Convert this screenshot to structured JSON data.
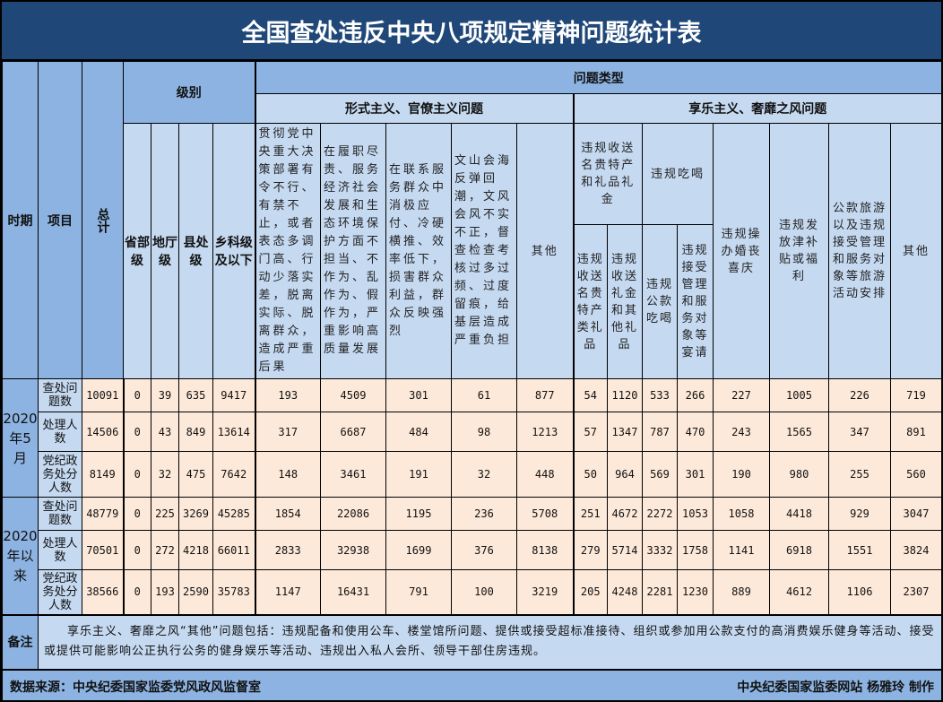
{
  "title": "全国查处违反中央八项规定精神问题统计表",
  "headers": {
    "period": "时期",
    "item": "项目",
    "total": "总计",
    "level": "级别",
    "problem_type": "问题类型",
    "levels": [
      "省部级",
      "地厅级",
      "县处级",
      "乡科级及以下"
    ],
    "formalism": "形式主义、官僚主义问题",
    "hedonism": "享乐主义、奢靡之风问题",
    "formalism_cols": [
      "贯彻党中央重大决策部署有令不行、有禁不止，或者表态多调门高、行动少落实差，脱离实际、脱离群众，造成严重后果",
      "在履职尽责、服务经济社会发展和生态环境保护方面不担当、不作为、乱作为、假作为，严重影响高质量发展",
      "在联系服务群众中消极应付、冷硬横推、效率低下，损害群众利益，群众反映强烈",
      "文山会海反弹回潮，文风会风不实不正，督查检查考核过多过频、过度留痕，给基层造成严重负担",
      "其他"
    ],
    "gifts_group": "违规收送名贵特产和礼品礼金",
    "dining_group": "违规吃喝",
    "gifts_cols": [
      "违规收送名贵特产类礼品",
      "违规收送礼金和其他礼品"
    ],
    "dining_cols": [
      "违规公款吃喝",
      "违规接受管理和服务对象等宴请"
    ],
    "hedonism_cols": [
      "违规操办婚丧喜庆",
      "违规发放津补贴或福利",
      "公款旅游以及违规接受管理和服务对象等旅游活动安排",
      "其他"
    ]
  },
  "periods": [
    {
      "label": "2020年5月",
      "rows": [
        {
          "item": "查处问题数",
          "values": [
            "10091",
            "0",
            "39",
            "635",
            "9417",
            "193",
            "4509",
            "301",
            "61",
            "877",
            "54",
            "1120",
            "533",
            "266",
            "227",
            "1005",
            "226",
            "719"
          ]
        },
        {
          "item": "处理人数",
          "values": [
            "14506",
            "0",
            "43",
            "849",
            "13614",
            "317",
            "6687",
            "484",
            "98",
            "1213",
            "57",
            "1347",
            "787",
            "470",
            "243",
            "1565",
            "347",
            "891"
          ]
        },
        {
          "item": "党纪政务处分人数",
          "values": [
            "8149",
            "0",
            "32",
            "475",
            "7642",
            "148",
            "3461",
            "191",
            "32",
            "448",
            "50",
            "964",
            "569",
            "301",
            "190",
            "980",
            "255",
            "560"
          ]
        }
      ]
    },
    {
      "label": "2020年以来",
      "rows": [
        {
          "item": "查处问题数",
          "values": [
            "48779",
            "0",
            "225",
            "3269",
            "45285",
            "1854",
            "22086",
            "1195",
            "236",
            "5708",
            "251",
            "4672",
            "2272",
            "1053",
            "1058",
            "4418",
            "929",
            "3047"
          ]
        },
        {
          "item": "处理人数",
          "values": [
            "70501",
            "0",
            "272",
            "4218",
            "66011",
            "2833",
            "32938",
            "1699",
            "376",
            "8138",
            "279",
            "5714",
            "3332",
            "1758",
            "1141",
            "6918",
            "1551",
            "3824"
          ]
        },
        {
          "item": "党纪政务处分人数",
          "values": [
            "38566",
            "0",
            "193",
            "2590",
            "35783",
            "1147",
            "16431",
            "791",
            "100",
            "3219",
            "205",
            "4248",
            "2281",
            "1230",
            "889",
            "4612",
            "1106",
            "2307"
          ]
        }
      ]
    }
  ],
  "remark": {
    "label": "备注",
    "text": "享乐主义、奢靡之风“其他”问题包括：违规配备和使用公车、楼堂馆所问题、提供或接受超标准接待、组织或参加用公款支付的高消费娱乐健身等活动、接受或提供可能影响公正执行公务的健身娱乐等活动、违规出入私人会所、领导干部住房违规。"
  },
  "footer": {
    "source": "数据来源：中央纪委国家监委党风政风监督室",
    "credit": "中央纪委国家监委网站 杨雅玲 制作"
  }
}
